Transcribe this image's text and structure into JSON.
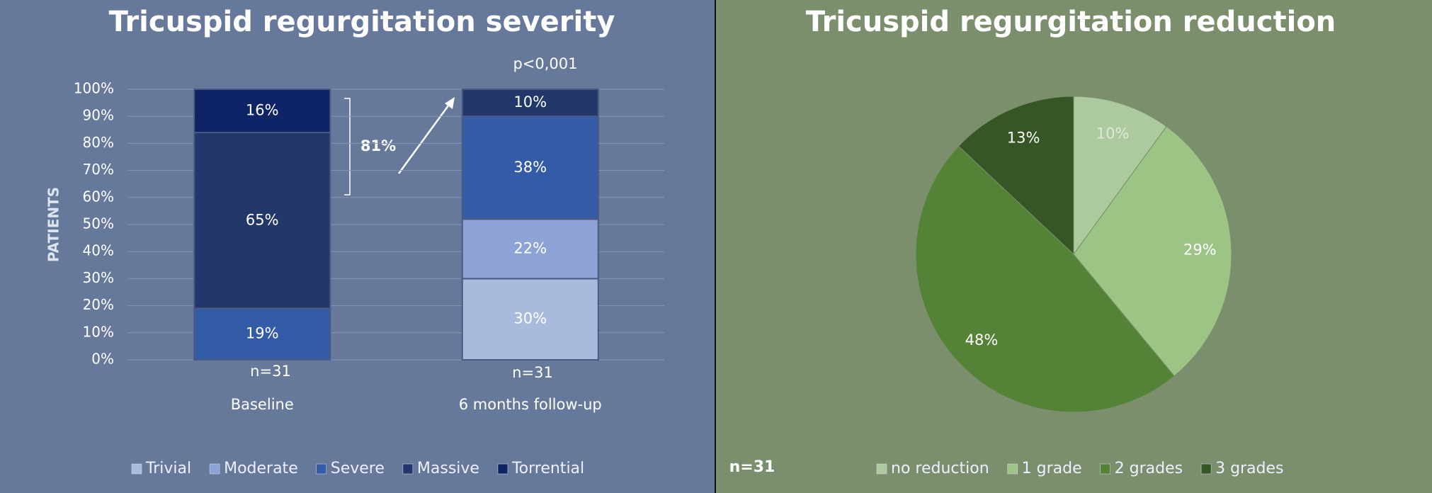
{
  "chart_data": [
    {
      "type": "stacked_bar",
      "title": "Tricuspid regurgitation severity",
      "y_label": "PATIENTS",
      "categories": [
        "Baseline",
        "6 months follow-up"
      ],
      "series": [
        {
          "name": "Trivial",
          "color": "#a9badd",
          "values": [
            0,
            30
          ],
          "value_labels": [
            null,
            "30%"
          ]
        },
        {
          "name": "Moderate",
          "color": "#8da2d5",
          "values": [
            0,
            22
          ],
          "value_labels": [
            null,
            "22%"
          ]
        },
        {
          "name": "Severe",
          "color": "#345ba6",
          "values": [
            19,
            38
          ],
          "value_labels": [
            "19%",
            "38%"
          ]
        },
        {
          "name": "Massive",
          "color": "#22386b",
          "values": [
            65,
            10
          ],
          "value_labels": [
            "65%",
            "10%"
          ]
        },
        {
          "name": "Torrential",
          "color": "#0e2466",
          "values": [
            16,
            0
          ],
          "value_labels": [
            "16%",
            null
          ]
        }
      ],
      "ylim": [
        0,
        100
      ],
      "yticks": [
        {
          "value": 0,
          "label": "0%"
        },
        {
          "value": 10,
          "label": "10%"
        },
        {
          "value": 20,
          "label": "20%"
        },
        {
          "value": 30,
          "label": "30%"
        },
        {
          "value": 40,
          "label": "40%"
        },
        {
          "value": 50,
          "label": "50%"
        },
        {
          "value": 60,
          "label": "60%"
        },
        {
          "value": 70,
          "label": "70%"
        },
        {
          "value": 80,
          "label": "80%"
        },
        {
          "value": 90,
          "label": "90%"
        },
        {
          "value": 100,
          "label": "100%"
        }
      ],
      "grid": true,
      "annotations": [
        "p<0,001",
        "81%",
        "n=31",
        "n=31"
      ]
    },
    {
      "type": "pie",
      "title": "Tricuspid regurgitation reduction",
      "categories": [
        "no reduction",
        "1 grade",
        "2 grades",
        "3 grades"
      ],
      "values": [
        10,
        29,
        48,
        13
      ],
      "value_labels": [
        "10%",
        "29%",
        "48%",
        "13%"
      ],
      "colors": [
        "#adc9a0",
        "#9cc485",
        "#548236",
        "#375625"
      ],
      "annotations": [
        "n=31"
      ]
    }
  ]
}
